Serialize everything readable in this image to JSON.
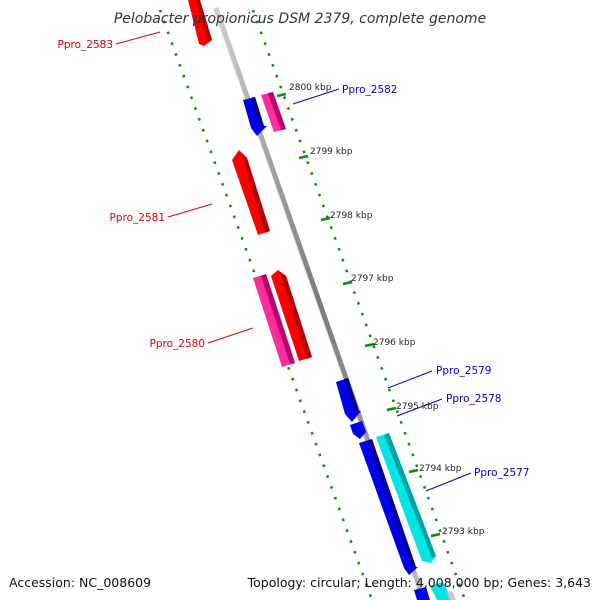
{
  "map": {
    "title": "Pelobacter propionicus DSM 2379, complete genome",
    "accession": "Accession: NC_008609",
    "summary": "Topology: circular; Length: 4,008,000 bp; Genes: 3,643"
  },
  "ticks": [
    "2800 kbp",
    "2799 kbp",
    "2798 kbp",
    "2797 kbp",
    "2796 kbp",
    "2795 kbp",
    "2794 kbp",
    "2793 kbp"
  ],
  "gene_labels": [
    {
      "text": "Ppro_2583",
      "strand": "minus",
      "color": "#dd0000"
    },
    {
      "text": "Ppro_2582",
      "strand": "plus",
      "color": "#0000cc"
    },
    {
      "text": "Ppro_2581",
      "strand": "minus",
      "color": "#dd0000"
    },
    {
      "text": "Ppro_2580",
      "strand": "minus",
      "color": "#dd0000"
    },
    {
      "text": "Ppro_2579",
      "strand": "plus",
      "color": "#0000cc"
    },
    {
      "text": "Ppro_2578",
      "strand": "plus",
      "color": "#0000cc"
    },
    {
      "text": "Ppro_2577",
      "strand": "plus",
      "color": "#0000cc"
    }
  ],
  "colors": {
    "forward_cds": "#0000ee",
    "reverse_cds": "#ff0000",
    "forward_feature": "#00e5e5",
    "reverse_feature": "#ff2d9b",
    "backbone": "#888888",
    "ticks": "#008800"
  }
}
